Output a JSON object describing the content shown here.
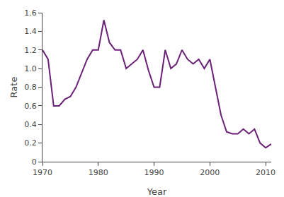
{
  "chart_data": {
    "type": "line",
    "x": [
      1970,
      1971,
      1972,
      1973,
      1974,
      1975,
      1976,
      1977,
      1978,
      1979,
      1980,
      1981,
      1982,
      1983,
      1984,
      1985,
      1986,
      1987,
      1988,
      1989,
      1990,
      1991,
      1992,
      1993,
      1994,
      1995,
      1996,
      1997,
      1998,
      1999,
      2000,
      2001,
      2002,
      2003,
      2004,
      2005,
      2006,
      2007,
      2008,
      2009,
      2010,
      2011
    ],
    "values": [
      1.2,
      1.1,
      0.6,
      0.6,
      0.67,
      0.7,
      0.8,
      0.95,
      1.1,
      1.2,
      1.2,
      1.52,
      1.28,
      1.2,
      1.2,
      1.0,
      1.05,
      1.1,
      1.2,
      0.98,
      0.8,
      0.8,
      1.2,
      1.0,
      1.05,
      1.2,
      1.1,
      1.05,
      1.1,
      1.0,
      1.1,
      0.8,
      0.5,
      0.32,
      0.3,
      0.3,
      0.35,
      0.3,
      0.35,
      0.2,
      0.15,
      0.19
    ],
    "color": "#6b2177",
    "xlabel": "Year",
    "ylabel": "Rate",
    "xlim": [
      1970,
      2011
    ],
    "ylim": [
      0,
      1.6
    ],
    "xticks": [
      1970,
      1980,
      1990,
      2000,
      2010
    ],
    "yticks": [
      0,
      0.2,
      0.4,
      0.6,
      0.8,
      {
        "value": 1.0,
        "label": "1.0"
      },
      1.2,
      1.4,
      1.6
    ],
    "grid": false
  }
}
